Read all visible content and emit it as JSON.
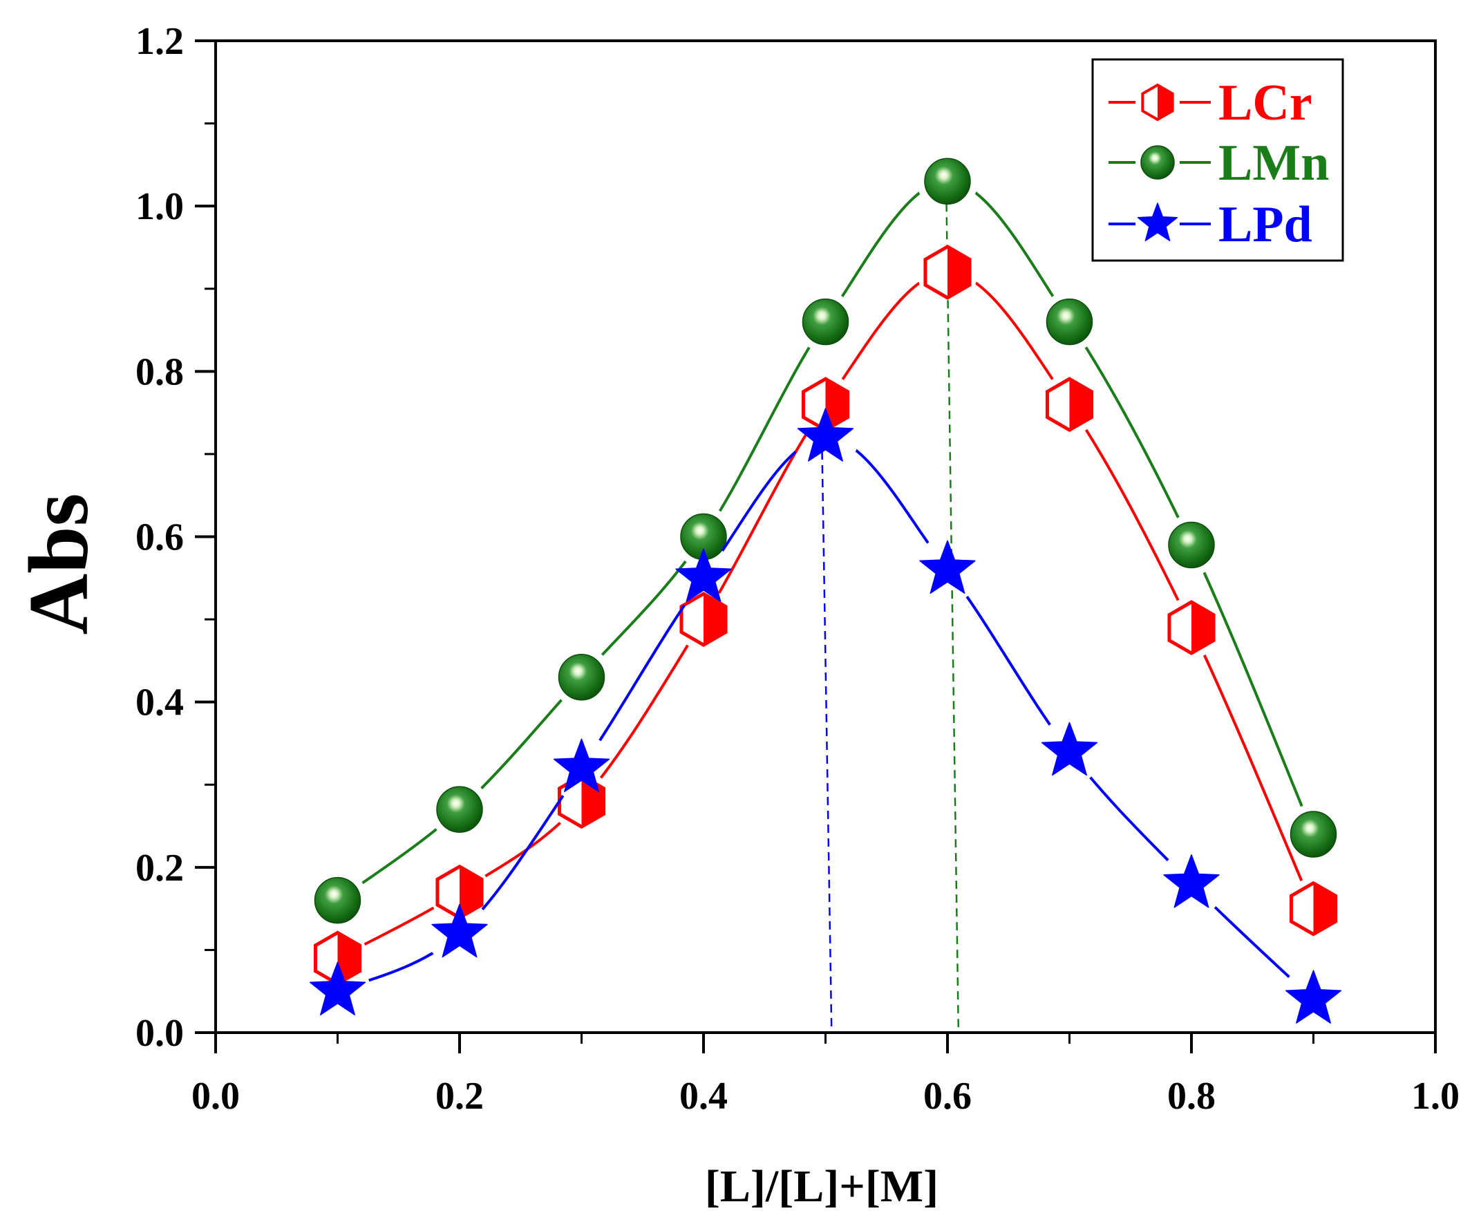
{
  "chart_data": {
    "type": "line",
    "xlabel": "[L]/[L]+[M]",
    "ylabel": "Abs",
    "xlim": [
      0.0,
      1.0
    ],
    "ylim": [
      0.0,
      1.2
    ],
    "xtick_labels": [
      "0.0",
      "0.2",
      "0.4",
      "0.6",
      "0.8",
      "1.0"
    ],
    "ytick_labels": [
      "0.0",
      "0.2",
      "0.4",
      "0.6",
      "0.8",
      "1.0",
      "1.2"
    ],
    "minor_ticks": true,
    "grid": false,
    "x": [
      0.1,
      0.2,
      0.3,
      0.4,
      0.5,
      0.6,
      0.7,
      0.8,
      0.9
    ],
    "series": [
      {
        "name": "LCr",
        "color": "#ff0000",
        "marker": "half-filled-hexagon",
        "values": [
          0.09,
          0.17,
          0.28,
          0.5,
          0.76,
          0.92,
          0.76,
          0.49,
          0.15
        ]
      },
      {
        "name": "LMn",
        "color": "#1a7d1a",
        "marker": "sphere",
        "values": [
          0.16,
          0.27,
          0.43,
          0.6,
          0.86,
          1.03,
          0.86,
          0.59,
          0.24
        ]
      },
      {
        "name": "LPd",
        "color": "#0000ff",
        "marker": "star",
        "values": [
          0.05,
          0.12,
          0.32,
          0.55,
          0.72,
          0.56,
          0.34,
          0.18,
          0.04
        ]
      }
    ],
    "droplines": [
      {
        "series_index": 2,
        "x": [
          0.497,
          0.505
        ],
        "y": [
          0.72,
          0.0
        ]
      },
      {
        "series_index": 1,
        "x": [
          0.599,
          0.609
        ],
        "y": [
          1.02,
          0.0
        ]
      }
    ],
    "legend": {
      "position": "top-right"
    }
  }
}
